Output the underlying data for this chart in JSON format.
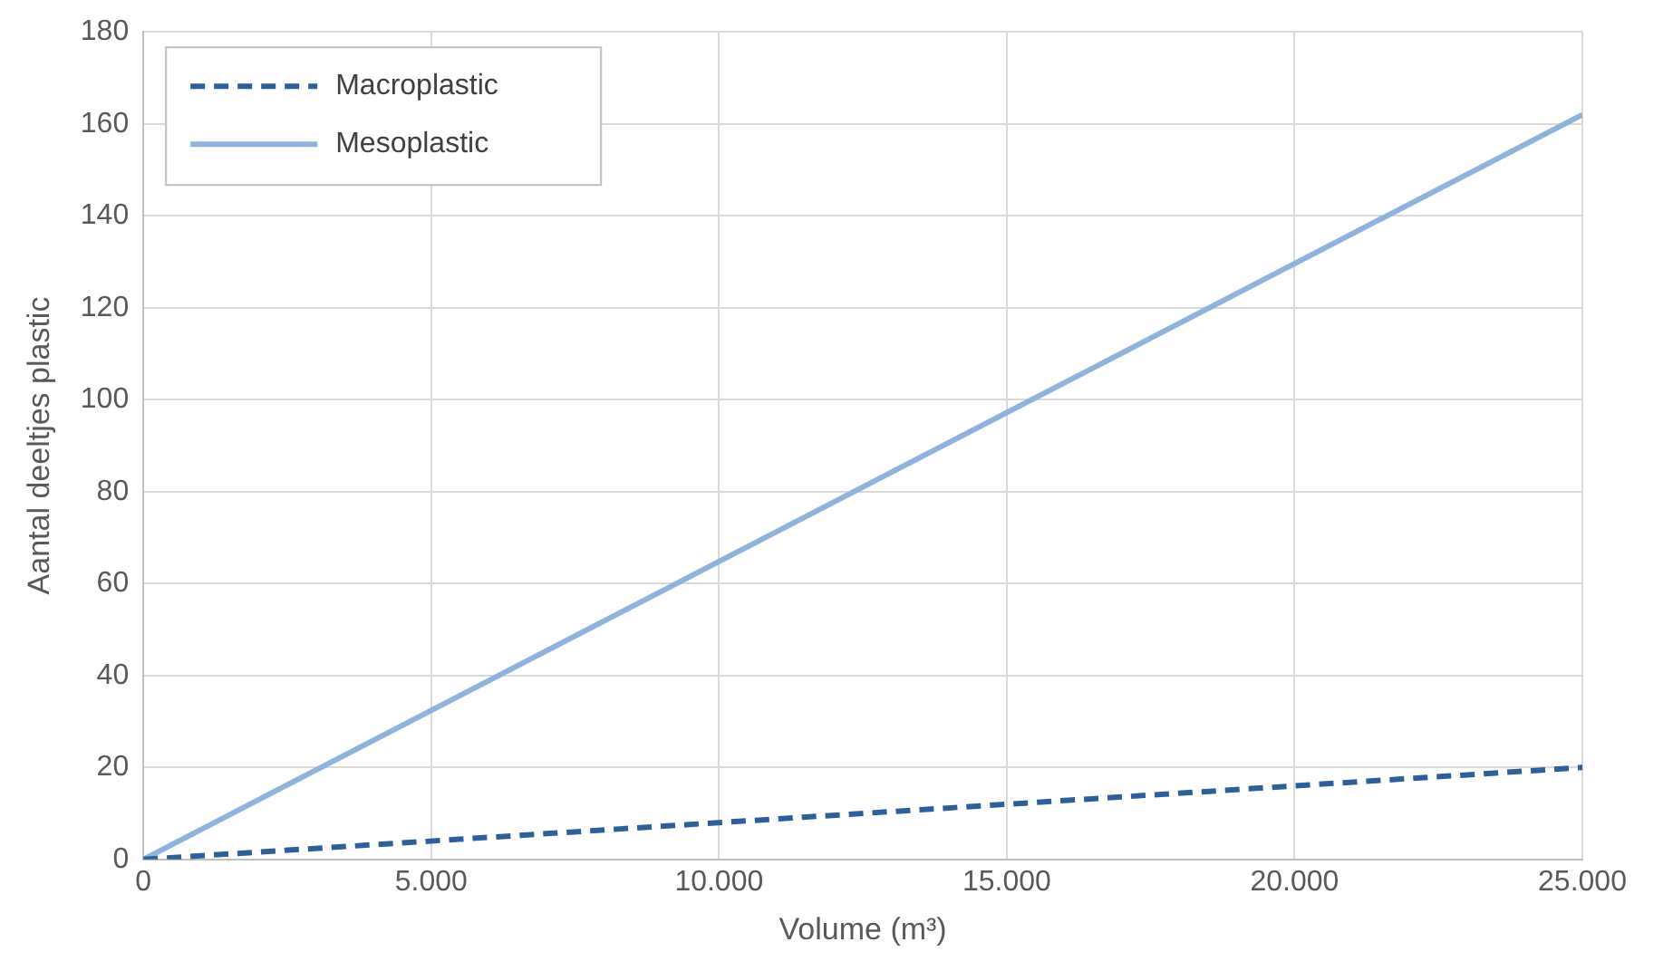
{
  "chart_data": {
    "type": "line",
    "xlabel": "Volume (m³)",
    "ylabel": "Aantal deeltjes plastic",
    "x": [
      0,
      25000
    ],
    "series": [
      {
        "name": "Macroplastic",
        "color": "#2e5f9a",
        "line_style": "dashed",
        "values": [
          0,
          20
        ]
      },
      {
        "name": "Mesoplastic",
        "color": "#8fb3dd",
        "line_style": "solid",
        "values": [
          0,
          162
        ]
      }
    ],
    "xlim": [
      0,
      25000
    ],
    "xticks": [
      0,
      {
        "value": 5000,
        "label": "5.000"
      },
      {
        "value": 10000,
        "label": "10.000"
      },
      {
        "value": 15000,
        "label": "15.000"
      },
      {
        "value": 20000,
        "label": "20.000"
      },
      {
        "value": 25000,
        "label": "25.000"
      }
    ],
    "ylim": [
      0,
      180
    ],
    "yticks": [
      0,
      20,
      40,
      60,
      80,
      100,
      120,
      140,
      160,
      180
    ],
    "grid": true,
    "legend": "top left",
    "marker": "none"
  }
}
